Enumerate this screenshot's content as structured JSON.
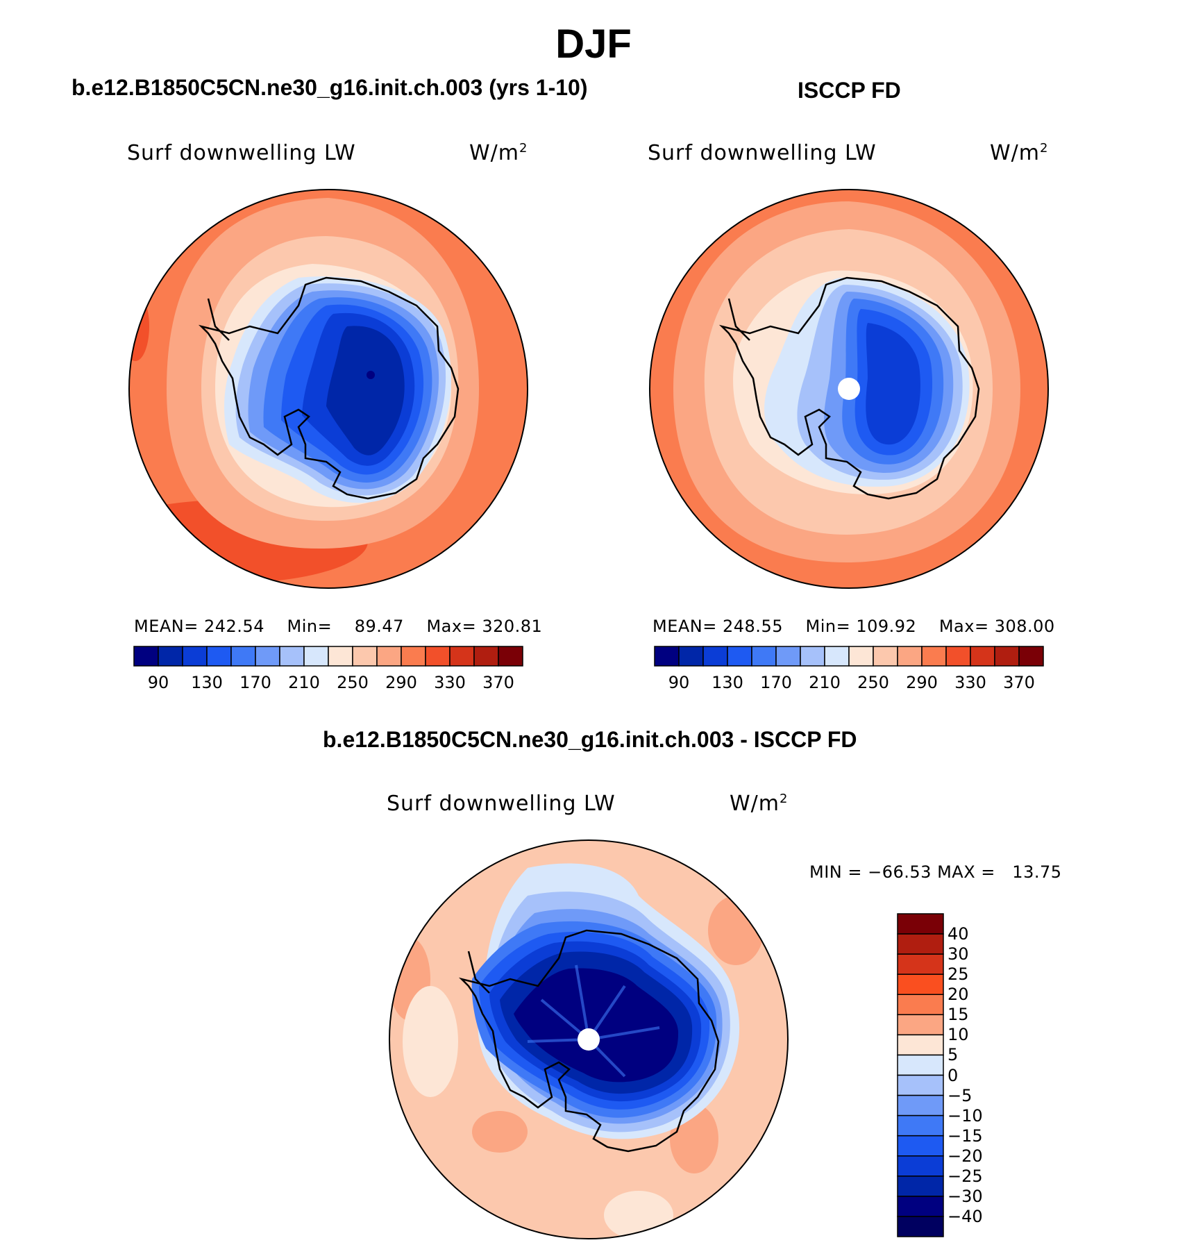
{
  "title": "DJF",
  "chart_data": [
    {
      "type": "heatmap",
      "projection": "south-polar-stereographic",
      "title": "b.e12.B1850C5CN.ne30_g16.init.ch.003 (yrs 1-10)",
      "variable_label": "Surf downwelling LW",
      "units_base": "W/m",
      "units_sup": "2",
      "stats": {
        "mean_label": "MEAN=",
        "mean": "242.54",
        "min_label": "Min=",
        "min": "89.47",
        "max_label": "Max=",
        "max": "320.81"
      },
      "colorbar": {
        "orientation": "horizontal",
        "tick_labels": [
          "90",
          "130",
          "170",
          "210",
          "250",
          "290",
          "330",
          "370"
        ],
        "colors": [
          "#000080",
          "#0026a8",
          "#0b3dd6",
          "#1e5af2",
          "#3f79f6",
          "#6f9af8",
          "#a6c1fa",
          "#d7e7fc",
          "#fde6d6",
          "#fcc8ad",
          "#fba683",
          "#fa7c4f",
          "#f2502a",
          "#d5341a",
          "#b01e10",
          "#7a0006"
        ]
      }
    },
    {
      "type": "heatmap",
      "projection": "south-polar-stereographic",
      "title": "ISCCP FD",
      "variable_label": "Surf downwelling LW",
      "units_base": "W/m",
      "units_sup": "2",
      "stats": {
        "mean_label": "MEAN=",
        "mean": "248.55",
        "min_label": "Min=",
        "min": "109.92",
        "max_label": "Max=",
        "max": "308.00"
      },
      "colorbar": {
        "orientation": "horizontal",
        "tick_labels": [
          "90",
          "130",
          "170",
          "210",
          "250",
          "290",
          "330",
          "370"
        ],
        "colors": [
          "#000080",
          "#0026a8",
          "#0b3dd6",
          "#1e5af2",
          "#3f79f6",
          "#6f9af8",
          "#a6c1fa",
          "#d7e7fc",
          "#fde6d6",
          "#fcc8ad",
          "#fba683",
          "#fa7c4f",
          "#f2502a",
          "#d5341a",
          "#b01e10",
          "#7a0006"
        ]
      }
    },
    {
      "type": "heatmap",
      "projection": "south-polar-stereographic",
      "title": "b.e12.B1850C5CN.ne30_g16.init.ch.003 - ISCCP FD",
      "variable_label": "Surf downwelling LW",
      "units_base": "W/m",
      "units_sup": "2",
      "stats": {
        "min_label": "MIN =",
        "min": "−66.53",
        "max_label": "MAX =",
        "max": "13.75"
      },
      "colorbar": {
        "orientation": "vertical",
        "tick_labels": [
          "40",
          "30",
          "25",
          "20",
          "15",
          "10",
          "5",
          "0",
          "−5",
          "−10",
          "−15",
          "−20",
          "−25",
          "−30",
          "−40"
        ],
        "colors": [
          "#7a0006",
          "#b01e10",
          "#d5341a",
          "#fa4f1f",
          "#fa7c4f",
          "#fba683",
          "#fde6d6",
          "#d7e7fc",
          "#a6c1fa",
          "#6f9af8",
          "#3f79f6",
          "#1e5af2",
          "#0b3dd6",
          "#0026a8",
          "#000080",
          "#000060"
        ]
      }
    }
  ]
}
